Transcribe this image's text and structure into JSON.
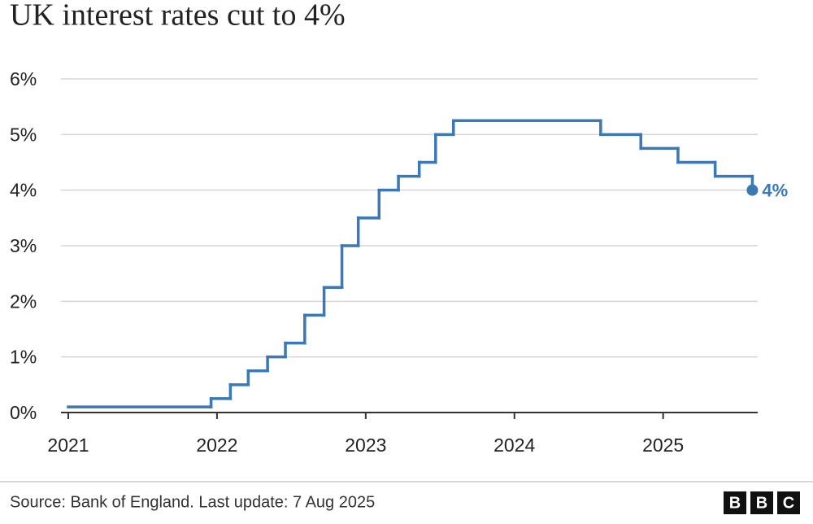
{
  "chart_data": {
    "type": "line",
    "step": "post",
    "title": "UK interest rates cut to 4%",
    "source": "Source: Bank of England. Last update: 7 Aug 2025",
    "logo": [
      "B",
      "B",
      "C"
    ],
    "xlim": [
      2021,
      2025.6
    ],
    "xticks": [
      2021,
      2022,
      2023,
      2024,
      2025
    ],
    "ylim": [
      0,
      6
    ],
    "yticks": [
      {
        "value": 0,
        "label": "0%"
      },
      {
        "value": 1,
        "label": "1%"
      },
      {
        "value": 2,
        "label": "2%"
      },
      {
        "value": 3,
        "label": "3%"
      },
      {
        "value": 4,
        "label": "4%"
      },
      {
        "value": 5,
        "label": "5%"
      },
      {
        "value": 6,
        "label": "6%"
      }
    ],
    "grid": true,
    "series": [
      {
        "color": "#3a78b6",
        "x": [
          2021,
          2021.96,
          2022.09,
          2022.21,
          2022.34,
          2022.46,
          2022.59,
          2022.72,
          2022.84,
          2022.95,
          2023.09,
          2023.22,
          2023.36,
          2023.47,
          2023.59,
          2024.58,
          2024.85,
          2025.1,
          2025.35,
          2025.6
        ],
        "values": [
          0.1,
          0.25,
          0.5,
          0.75,
          1,
          1.25,
          1.75,
          2.25,
          3,
          3.5,
          4,
          4.25,
          4.5,
          5,
          5.25,
          5,
          4.75,
          4.5,
          4.25,
          4
        ],
        "value_labels": [
          null,
          null,
          null,
          null,
          null,
          null,
          null,
          null,
          null,
          null,
          null,
          null,
          null,
          null,
          null,
          null,
          null,
          null,
          null,
          "4%"
        ]
      }
    ]
  }
}
